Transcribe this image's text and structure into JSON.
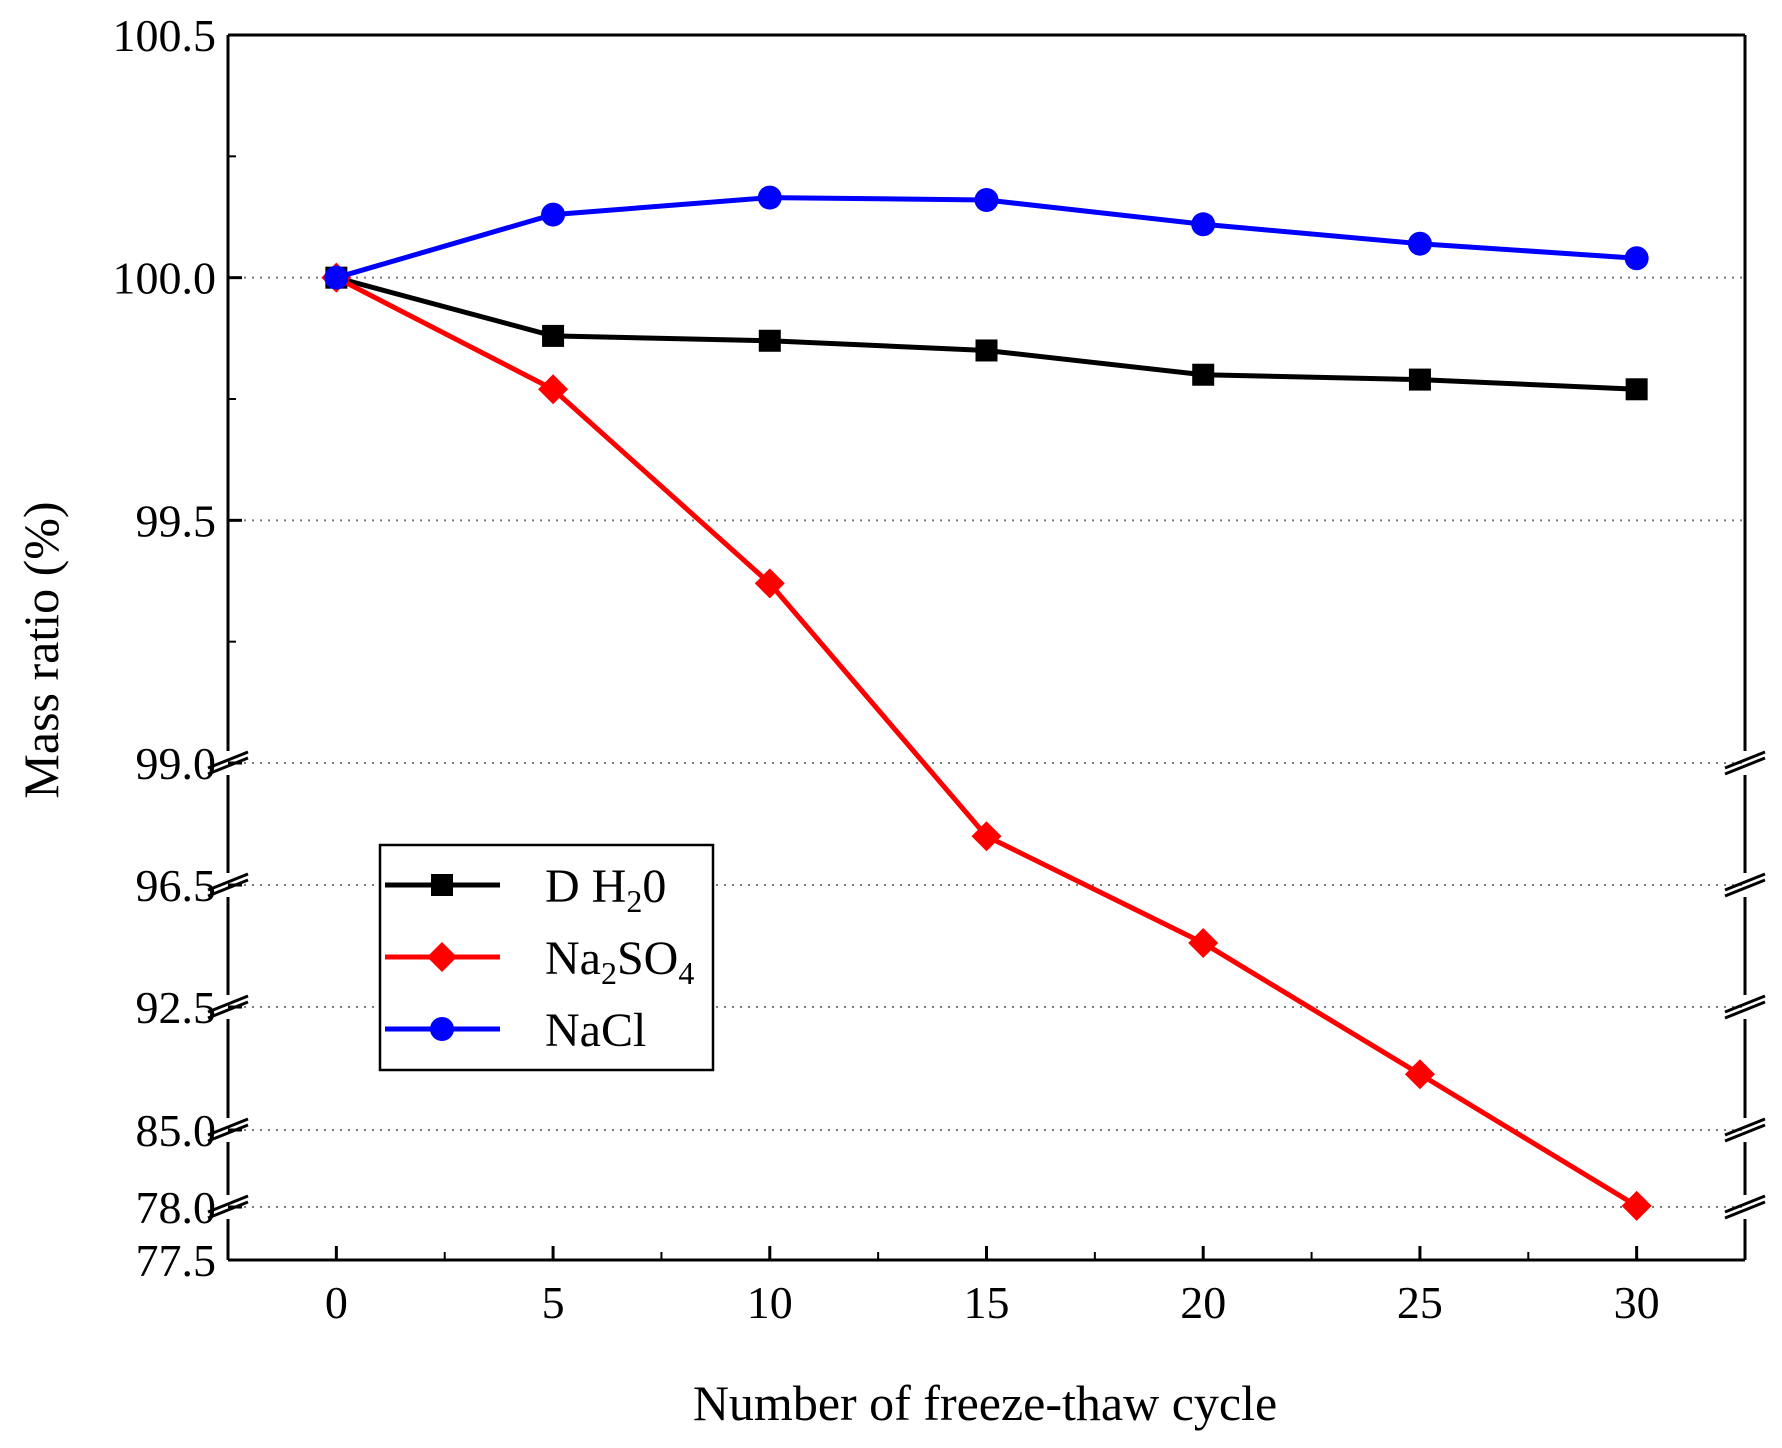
{
  "chart_data": {
    "type": "line",
    "title": "",
    "xlabel": "Number of freeze-thaw cycle",
    "ylabel": "Mass ratio (%)",
    "x": [
      0,
      5,
      10,
      15,
      20,
      25,
      30
    ],
    "xlim": [
      -2.5,
      32.5
    ],
    "x_ticks": [
      "0",
      "5",
      "10",
      "15",
      "20",
      "25",
      "30"
    ],
    "y_axis_broken": true,
    "y_segments": [
      {
        "range": [
          77.5,
          78.0
        ],
        "ticks": [
          "77.5",
          "78.0"
        ]
      },
      {
        "range": [
          78.0,
          85.0
        ],
        "ticks": [
          "78.0",
          "85.0"
        ]
      },
      {
        "range": [
          85.0,
          92.5
        ],
        "ticks": [
          "85.0",
          "92.5"
        ]
      },
      {
        "range": [
          92.5,
          96.5
        ],
        "ticks": [
          "92.5",
          "96.5"
        ]
      },
      {
        "range": [
          96.5,
          99.0
        ],
        "ticks": [
          "96.5",
          "99.0"
        ]
      },
      {
        "range": [
          99.0,
          100.5
        ],
        "ticks": [
          "99.0",
          "99.5",
          "100.0",
          "100.5"
        ]
      }
    ],
    "gridlines": [
      78.0,
      85.0,
      92.5,
      96.5,
      99.0,
      99.5,
      100.0
    ],
    "grid": "horizontal dotted",
    "legend_position": "lower-left",
    "series": [
      {
        "name": "D H20",
        "label_main": "D H",
        "label_sub": "2",
        "label_tail": "0",
        "color": "#000000",
        "marker": "square",
        "values": [
          100.0,
          99.88,
          99.87,
          99.85,
          99.8,
          99.79,
          99.77
        ]
      },
      {
        "name": "Na2SO4",
        "label_main": "Na",
        "label_sub": "2",
        "label_tail": "SO",
        "label_sub2": "4",
        "color": "#ff0000",
        "marker": "diamond",
        "values": [
          100.0,
          99.77,
          99.37,
          97.5,
          94.6,
          88.4,
          78.1
        ]
      },
      {
        "name": "NaCl",
        "label_main": "NaCl",
        "color": "#0000ff",
        "marker": "circle",
        "values": [
          100.0,
          100.13,
          100.165,
          100.16,
          100.11,
          100.07,
          100.04
        ]
      }
    ]
  }
}
